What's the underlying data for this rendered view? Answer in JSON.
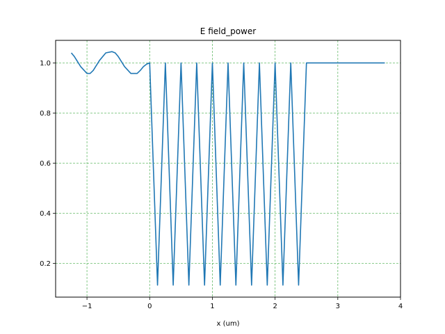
{
  "chart_data": {
    "type": "line",
    "title": "E field_power",
    "xlabel": "x (um)",
    "ylabel": "",
    "xlim": [
      -1.5,
      4.0
    ],
    "ylim": [
      0.065,
      1.09
    ],
    "xticks": [
      -1,
      0,
      1,
      2,
      3,
      4
    ],
    "yticks": [
      0.2,
      0.4,
      0.6,
      0.8,
      1.0
    ],
    "xtick_labels": [
      "−1",
      "0",
      "1",
      "2",
      "3",
      "4"
    ],
    "ytick_labels": [
      "0.2",
      "0.4",
      "0.6",
      "0.8",
      "1.0"
    ],
    "grid": true,
    "grid_color": "#4caf50",
    "series": [
      {
        "color": "#1f77b4",
        "x": [
          -1.25,
          -1.2,
          -1.1,
          -1.0,
          -0.95,
          -0.9,
          -0.8,
          -0.7,
          -0.6,
          -0.55,
          -0.5,
          -0.4,
          -0.3,
          -0.2,
          -0.15,
          -0.1,
          -0.05,
          0.0,
          0.0,
          0.125,
          0.25,
          0.375,
          0.5,
          0.625,
          0.75,
          0.875,
          1.0,
          1.125,
          1.25,
          1.375,
          1.5,
          1.625,
          1.75,
          1.875,
          2.0,
          2.125,
          2.25,
          2.375,
          2.5,
          2.5,
          3.0,
          3.5,
          3.75
        ],
        "y": [
          1.04,
          1.025,
          0.985,
          0.958,
          0.958,
          0.97,
          1.01,
          1.04,
          1.045,
          1.04,
          1.025,
          0.985,
          0.958,
          0.958,
          0.97,
          0.985,
          0.995,
          1.0,
          1.0,
          0.113,
          1.0,
          0.113,
          1.0,
          0.113,
          1.0,
          0.113,
          1.0,
          0.113,
          1.0,
          0.113,
          1.0,
          0.113,
          1.0,
          0.113,
          1.0,
          0.113,
          1.0,
          0.113,
          1.0,
          1.0,
          1.0,
          1.0,
          1.0
        ]
      }
    ]
  }
}
